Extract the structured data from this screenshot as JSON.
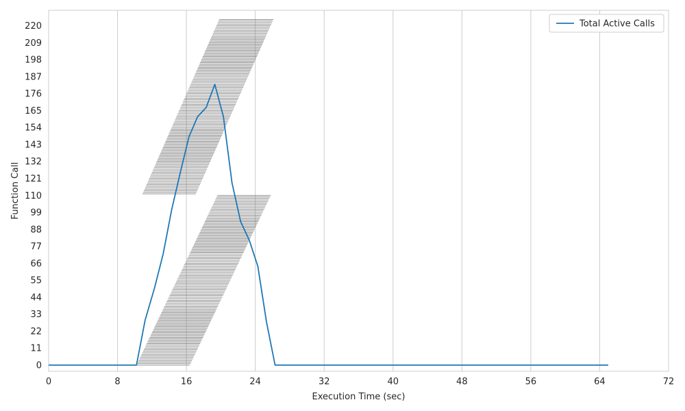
{
  "chart_data": {
    "type": "line",
    "title": "",
    "xlabel": "Execution Time (sec)",
    "ylabel": "Function Call",
    "xlim": [
      0,
      72
    ],
    "ylim": [
      -4,
      230
    ],
    "xticks": [
      0,
      8,
      16,
      24,
      32,
      40,
      48,
      56,
      64,
      72
    ],
    "yticks": [
      0,
      11,
      22,
      33,
      44,
      55,
      66,
      77,
      88,
      99,
      110,
      121,
      132,
      143,
      154,
      165,
      176,
      187,
      198,
      209,
      220
    ],
    "grid": "vertical",
    "legend_position": "top-right",
    "series": [
      {
        "name": "Total Active Calls",
        "color": "#1f77b4",
        "points": [
          [
            0,
            0
          ],
          [
            10.2,
            0
          ],
          [
            11.2,
            29
          ],
          [
            12.3,
            50
          ],
          [
            13.3,
            72
          ],
          [
            14.3,
            101
          ],
          [
            15.3,
            125
          ],
          [
            16.3,
            148
          ],
          [
            17.3,
            161
          ],
          [
            18.3,
            167
          ],
          [
            19.3,
            182
          ],
          [
            20.3,
            161
          ],
          [
            21.3,
            118
          ],
          [
            22.3,
            93
          ],
          [
            23.3,
            81
          ],
          [
            24.3,
            64
          ],
          [
            25.3,
            28
          ],
          [
            26.3,
            0
          ],
          [
            65,
            0
          ]
        ]
      }
    ],
    "interval_groups": [
      {
        "first_call": 0,
        "last_call": 110,
        "start_begin": 10.2,
        "start_end": 19.6,
        "duration_begin": 6.2,
        "duration_end": 6.2
      },
      {
        "first_call": 111,
        "last_call": 224,
        "start_begin": 10.9,
        "start_end": 19.8,
        "duration_begin": 6.2,
        "duration_end": 6.3
      }
    ],
    "interval_color": "#6b6b6b"
  }
}
